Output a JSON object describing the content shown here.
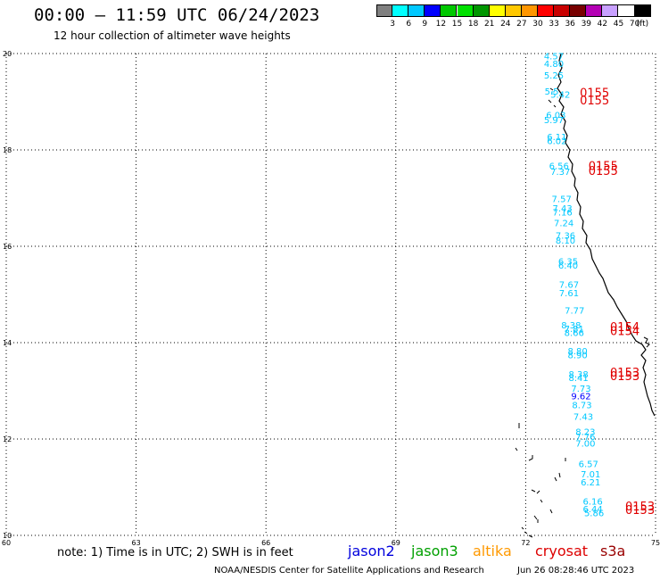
{
  "header": {
    "title": "00:00 – 11:59 UTC 06/24/2023",
    "subtitle": "12 hour collection of altimeter wave heights"
  },
  "colorbar": {
    "colors": [
      "#808080",
      "#00ffff",
      "#00c8ff",
      "#0000ff",
      "#00c800",
      "#00e100",
      "#009600",
      "#ffff00",
      "#ffc800",
      "#ff9600",
      "#ff0000",
      "#c80000",
      "#780000",
      "#b400b4",
      "#c8a0ff",
      "#ffffff",
      "#000000"
    ],
    "labels": [
      "3",
      "6",
      "9",
      "12",
      "15",
      "18",
      "21",
      "24",
      "27",
      "30",
      "33",
      "36",
      "39",
      "42",
      "45",
      "70"
    ],
    "unit": "(ft)"
  },
  "map": {
    "lon_ticks": [
      "60",
      "63",
      "66",
      "69",
      "72",
      "75"
    ],
    "lat_ticks": [
      "20",
      "18",
      "16",
      "14",
      "12",
      "10"
    ],
    "observations": [
      {
        "text": "4.57",
        "lon": 72.65,
        "lat": 19.88
      },
      {
        "text": "4.80",
        "lon": 72.65,
        "lat": 19.72
      },
      {
        "text": "5.25",
        "lon": 72.65,
        "lat": 19.48
      },
      {
        "text": "5.5",
        "lon": 72.6,
        "lat": 19.15
      },
      {
        "text": "5.42",
        "lon": 72.8,
        "lat": 19.08
      },
      {
        "text": "6.03",
        "lon": 72.7,
        "lat": 18.66
      },
      {
        "text": "5.97",
        "lon": 72.65,
        "lat": 18.56
      },
      {
        "text": "6.11",
        "lon": 72.72,
        "lat": 18.2
      },
      {
        "text": "6.02",
        "lon": 72.72,
        "lat": 18.12
      },
      {
        "text": "6.56",
        "lon": 72.77,
        "lat": 17.6
      },
      {
        "text": "7.37",
        "lon": 72.8,
        "lat": 17.48
      },
      {
        "text": "7.57",
        "lon": 72.83,
        "lat": 16.92
      },
      {
        "text": "7.43",
        "lon": 72.85,
        "lat": 16.72
      },
      {
        "text": "7.16",
        "lon": 72.85,
        "lat": 16.64
      },
      {
        "text": "7.24",
        "lon": 72.88,
        "lat": 16.42
      },
      {
        "text": "7.36",
        "lon": 72.92,
        "lat": 16.16
      },
      {
        "text": "8.10",
        "lon": 72.92,
        "lat": 16.06
      },
      {
        "text": "6.35",
        "lon": 72.98,
        "lat": 15.62
      },
      {
        "text": "6.40",
        "lon": 72.98,
        "lat": 15.54
      },
      {
        "text": "7.67",
        "lon": 73.0,
        "lat": 15.14
      },
      {
        "text": "7.61",
        "lon": 73.0,
        "lat": 14.96
      },
      {
        "text": "7.77",
        "lon": 73.13,
        "lat": 14.6
      },
      {
        "text": "8.38",
        "lon": 73.05,
        "lat": 14.3
      },
      {
        "text": "7.81",
        "lon": 73.12,
        "lat": 14.22
      },
      {
        "text": "8.66",
        "lon": 73.12,
        "lat": 14.14
      },
      {
        "text": "8.80",
        "lon": 73.2,
        "lat": 13.76
      },
      {
        "text": "8.90",
        "lon": 73.2,
        "lat": 13.68
      },
      {
        "text": "8.38",
        "lon": 73.22,
        "lat": 13.28
      },
      {
        "text": "8.41",
        "lon": 73.22,
        "lat": 13.2
      },
      {
        "text": "7.73",
        "lon": 73.28,
        "lat": 12.98
      },
      {
        "text": "9.62",
        "lon": 73.28,
        "lat": 12.82
      },
      {
        "text": "8.73",
        "lon": 73.3,
        "lat": 12.64
      },
      {
        "text": "7.43",
        "lon": 73.33,
        "lat": 12.4
      },
      {
        "text": "8.23",
        "lon": 73.38,
        "lat": 12.08
      },
      {
        "text": "7.76",
        "lon": 73.38,
        "lat": 11.98
      },
      {
        "text": "7.00",
        "lon": 73.38,
        "lat": 11.84
      },
      {
        "text": "6.57",
        "lon": 73.45,
        "lat": 11.42
      },
      {
        "text": "7.01",
        "lon": 73.5,
        "lat": 11.2
      },
      {
        "text": "6.21",
        "lon": 73.5,
        "lat": 11.04
      },
      {
        "text": "6.16",
        "lon": 73.55,
        "lat": 10.64
      },
      {
        "text": "6.44",
        "lon": 73.55,
        "lat": 10.48
      },
      {
        "text": "5.86",
        "lon": 73.58,
        "lat": 10.4
      }
    ],
    "pass_labels": [
      {
        "text": "0155",
        "lon": 73.25,
        "lat": 19.1
      },
      {
        "text": "0155",
        "lon": 73.25,
        "lat": 18.94
      },
      {
        "text": "0155",
        "lon": 73.45,
        "lat": 17.58
      },
      {
        "text": "0155",
        "lon": 73.45,
        "lat": 17.48
      },
      {
        "text": "0154",
        "lon": 73.95,
        "lat": 14.24
      },
      {
        "text": "0154",
        "lon": 73.95,
        "lat": 14.16
      },
      {
        "text": "0153",
        "lon": 73.95,
        "lat": 13.3
      },
      {
        "text": "0153",
        "lon": 73.95,
        "lat": 13.22
      },
      {
        "text": "0153",
        "lon": 74.3,
        "lat": 10.52
      },
      {
        "text": "0153",
        "lon": 74.3,
        "lat": 10.44
      }
    ]
  },
  "footer": {
    "note": "note: 1) Time is in UTC; 2) SWH is in feet",
    "legend": [
      {
        "name": "jason2",
        "color": "#0000dd"
      },
      {
        "name": "jason3",
        "color": "#00a000"
      },
      {
        "name": "altika",
        "color": "#ff9900"
      },
      {
        "name": "cryosat",
        "color": "#dd0000"
      },
      {
        "name": "s3a",
        "color": "#990000"
      }
    ],
    "credit": "NOAA/NESDIS Center for Satellite Applications and Research",
    "timestamp": "Jun 26 08:28:46 UTC 2023"
  }
}
